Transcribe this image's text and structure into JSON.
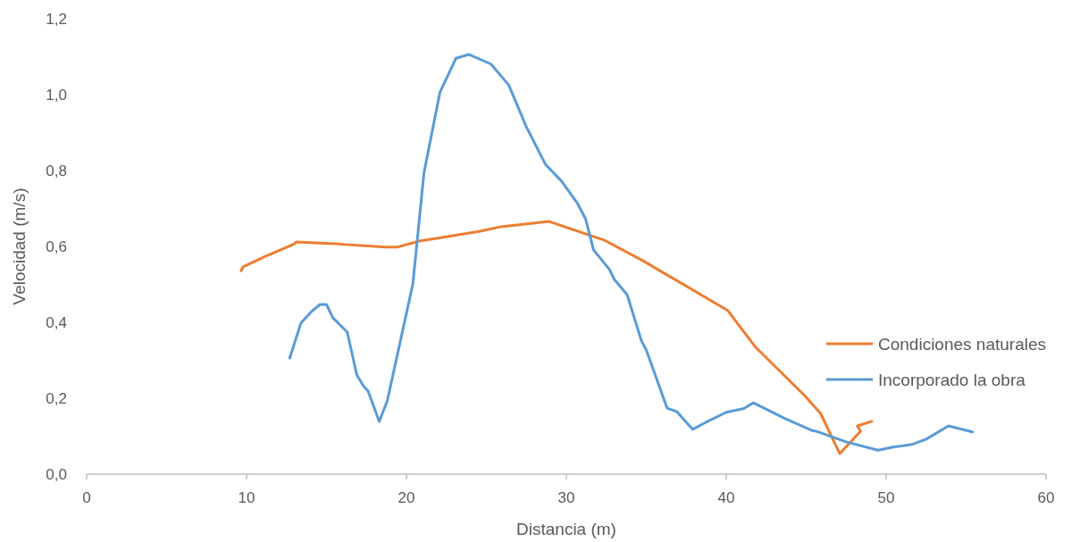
{
  "chart_data": {
    "type": "line",
    "xlabel": "Distancia (m)",
    "ylabel": "Velocidad (m/s)",
    "xlim": [
      0,
      60
    ],
    "xticks": [
      0,
      10,
      20,
      30,
      40,
      50,
      60
    ],
    "ylim": [
      0,
      1.2
    ],
    "yticks": [
      {
        "value": 0,
        "label": "0,0"
      },
      {
        "value": 0.2,
        "label": "0,2"
      },
      {
        "value": 0.4,
        "label": "0,4"
      },
      {
        "value": 0.6,
        "label": "0,6"
      },
      {
        "value": 0.8,
        "label": "0,8"
      },
      {
        "value": 1.0,
        "label": "1,0"
      },
      {
        "value": 1.2,
        "label": "1,2"
      }
    ],
    "grid": false,
    "legend": "right",
    "marker": "none",
    "line_style": "solid",
    "series": [
      {
        "name": "Condiciones naturales",
        "color": "#ed7d31",
        "x": [
          9.66,
          9.78,
          11.17,
          13.0,
          13.1,
          15.6,
          16.2,
          18.7,
          19.4,
          20.8,
          24.6,
          25.9,
          28.9,
          32.4,
          34.8,
          40.1,
          41.8,
          44.9,
          45.9,
          47.1,
          48.4,
          48.2,
          49.1
        ],
        "values": [
          0.536,
          0.546,
          0.574,
          0.607,
          0.612,
          0.607,
          0.605,
          0.598,
          0.598,
          0.614,
          0.64,
          0.652,
          0.666,
          0.616,
          0.562,
          0.431,
          0.336,
          0.207,
          0.16,
          0.054,
          0.113,
          0.127,
          0.139
        ]
      },
      {
        "name": "Incorporado la obra",
        "color": "#5b9bd5",
        "x": [
          12.7,
          13.4,
          14.1,
          14.6,
          15.0,
          15.4,
          16.3,
          16.9,
          17.3,
          17.6,
          18.3,
          18.8,
          20.4,
          21.1,
          22.1,
          23.1,
          23.9,
          25.3,
          26.4,
          27.5,
          28.7,
          29.7,
          30.7,
          31.2,
          31.7,
          32.7,
          33.0,
          33.8,
          34.7,
          35.0,
          36.3,
          36.9,
          37.9,
          38.7,
          40.0,
          41.1,
          41.7,
          43.6,
          45.3,
          45.7,
          47.5,
          49.5,
          50.4,
          51.6,
          52.5,
          53.9,
          55.4
        ],
        "values": [
          0.306,
          0.398,
          0.43,
          0.447,
          0.447,
          0.412,
          0.374,
          0.261,
          0.233,
          0.219,
          0.139,
          0.193,
          0.501,
          0.795,
          1.007,
          1.096,
          1.106,
          1.08,
          1.025,
          0.915,
          0.816,
          0.772,
          0.713,
          0.673,
          0.591,
          0.539,
          0.513,
          0.473,
          0.351,
          0.327,
          0.174,
          0.165,
          0.118,
          0.136,
          0.163,
          0.173,
          0.188,
          0.148,
          0.116,
          0.112,
          0.085,
          0.063,
          0.071,
          0.078,
          0.092,
          0.127,
          0.111
        ]
      }
    ]
  }
}
